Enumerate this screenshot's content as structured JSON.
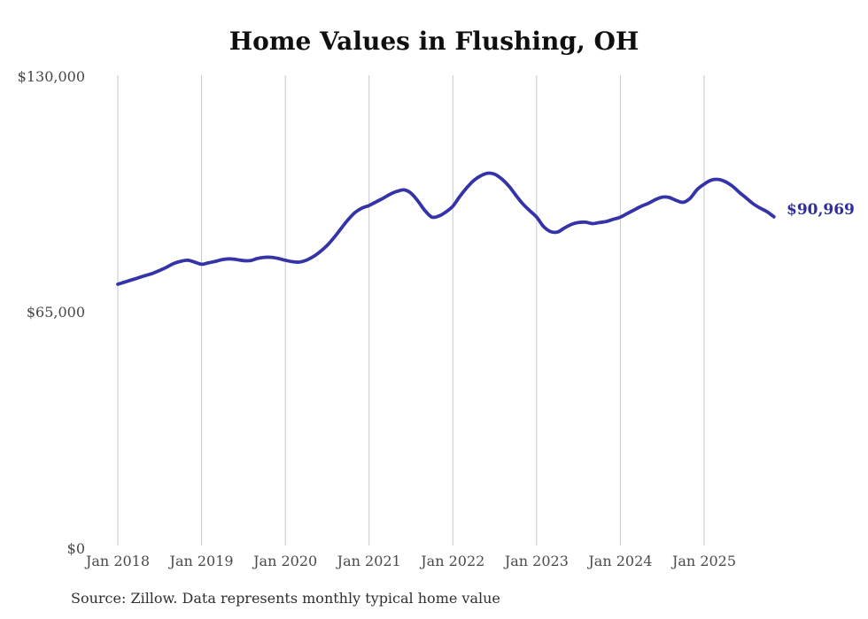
{
  "page": {
    "title": "Home Values in Flushing, OH",
    "source_note": "Source: Zillow. Data represents monthly typical home value"
  },
  "chart_data": {
    "type": "line",
    "title": "Home Values in Flushing, OH",
    "unit": "USD",
    "cadence": "monthly",
    "x_start": "Jan 2018",
    "x_end": "Nov 2025",
    "xticks": [
      "Jan 2018",
      "Jan 2019",
      "Jan 2020",
      "Jan 2021",
      "Jan 2022",
      "Jan 2023",
      "Jan 2024",
      "Jan 2025"
    ],
    "yticks": [
      {
        "label": "$130,000",
        "value": 130000
      },
      {
        "label": "$65,000",
        "value": 65000
      },
      {
        "label": "$0",
        "value": 0
      }
    ],
    "ylim": [
      0,
      130000
    ],
    "grid": "vertical-only",
    "legend": "none",
    "line_color": "#3434a8",
    "end_label": "$90,969",
    "end_value": 90969,
    "series": [
      {
        "name": "Typical home value",
        "values": [
          72400,
          73000,
          73600,
          74200,
          74800,
          75400,
          76200,
          77100,
          78100,
          78700,
          79000,
          78500,
          77900,
          78300,
          78700,
          79200,
          79400,
          79200,
          78900,
          78900,
          79500,
          79800,
          79800,
          79500,
          79000,
          78600,
          78500,
          79000,
          80000,
          81400,
          83100,
          85300,
          87800,
          90200,
          92200,
          93400,
          94100,
          95100,
          96100,
          97200,
          98000,
          98400,
          97500,
          95300,
          92700,
          90900,
          91200,
          92300,
          93900,
          96600,
          99000,
          101000,
          102300,
          103000,
          102700,
          101400,
          99500,
          97000,
          94600,
          92700,
          90900,
          88300,
          86900,
          86800,
          87900,
          88900,
          89400,
          89500,
          89100,
          89400,
          89700,
          90300,
          90900,
          91900,
          92900,
          93900,
          94700,
          95700,
          96400,
          96300,
          95500,
          95000,
          96100,
          98500,
          100000,
          101100,
          101300,
          100700,
          99500,
          97800,
          96200,
          94600,
          93400,
          92400,
          90969
        ]
      }
    ]
  }
}
